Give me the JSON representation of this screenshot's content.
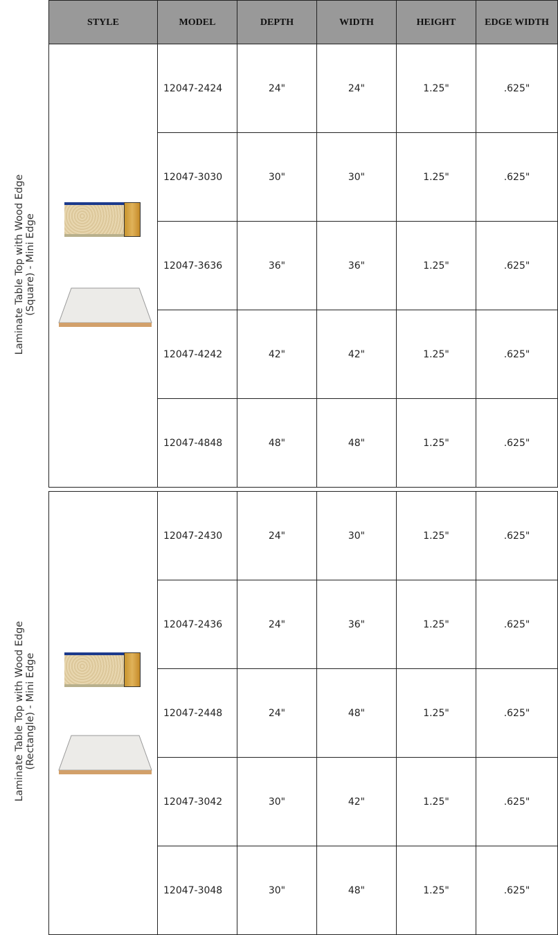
{
  "headers": [
    "STYLE",
    "MODEL",
    "DEPTH",
    "WIDTH",
    "HEIGHT",
    "EDGE WIDTH"
  ],
  "groups": [
    {
      "style_label": "Laminate Table Top with Wood Edge (Square) - Mini Edge",
      "rows": [
        {
          "model": "12047-2424",
          "depth": "24\"",
          "width": "24\"",
          "height": "1.25\"",
          "edge_width": ".625\""
        },
        {
          "model": "12047-3030",
          "depth": "30\"",
          "width": "30\"",
          "height": "1.25\"",
          "edge_width": ".625\""
        },
        {
          "model": "12047-3636",
          "depth": "36\"",
          "width": "36\"",
          "height": "1.25\"",
          "edge_width": ".625\""
        },
        {
          "model": "12047-4242",
          "depth": "42\"",
          "width": "42\"",
          "height": "1.25\"",
          "edge_width": ".625\""
        },
        {
          "model": "12047-4848",
          "depth": "48\"",
          "width": "48\"",
          "height": "1.25\"",
          "edge_width": ".625\""
        }
      ]
    },
    {
      "style_label": "Laminate Table Top with Wood Edge (Rectangle) - Mini Edge",
      "rows": [
        {
          "model": "12047-2430",
          "depth": "24\"",
          "width": "30\"",
          "height": "1.25\"",
          "edge_width": ".625\""
        },
        {
          "model": "12047-2436",
          "depth": "24\"",
          "width": "36\"",
          "height": "1.25\"",
          "edge_width": ".625\""
        },
        {
          "model": "12047-2448",
          "depth": "24\"",
          "width": "48\"",
          "height": "1.25\"",
          "edge_width": ".625\""
        },
        {
          "model": "12047-3042",
          "depth": "30\"",
          "width": "42\"",
          "height": "1.25\"",
          "edge_width": ".625\""
        },
        {
          "model": "12047-3048",
          "depth": "30\"",
          "width": "48\"",
          "height": "1.25\"",
          "edge_width": ".625\""
        }
      ]
    }
  ]
}
